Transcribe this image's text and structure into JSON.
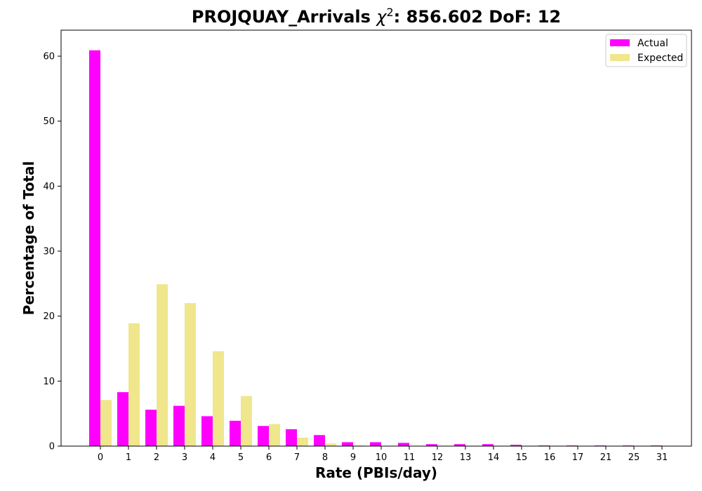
{
  "chart_data": {
    "type": "bar",
    "title": "PROJQUAY_Arrivals χ²: 856.602 DoF: 12",
    "title_parts": {
      "prefix": "PROJQUAY_Arrivals ",
      "chi": "χ",
      "superscript": "2",
      "suffix": ": 856.602 DoF: 12"
    },
    "xlabel": "Rate (PBIs/day)",
    "ylabel": "Percentage of Total",
    "categories": [
      "0",
      "1",
      "2",
      "3",
      "4",
      "5",
      "6",
      "7",
      "8",
      "9",
      "10",
      "11",
      "12",
      "13",
      "14",
      "15",
      "16",
      "17",
      "21",
      "25",
      "31"
    ],
    "series": [
      {
        "name": "Actual",
        "color": "#ff00ff",
        "values": [
          60.9,
          8.3,
          5.6,
          6.2,
          4.6,
          3.9,
          3.1,
          2.6,
          1.7,
          0.6,
          0.6,
          0.5,
          0.3,
          0.3,
          0.3,
          0.2,
          0.1,
          0.1,
          0.1,
          0.1,
          0.1
        ]
      },
      {
        "name": "Expected",
        "color": "#f0e68c",
        "values": [
          7.1,
          18.9,
          24.9,
          22.0,
          14.6,
          7.7,
          3.4,
          1.3,
          0.4,
          0.1,
          0.0,
          0.0,
          0.0,
          0.0,
          0.0,
          0.0,
          0.0,
          0.0,
          0.0,
          0.0,
          0.0
        ]
      }
    ],
    "yticks": [
      0,
      10,
      20,
      30,
      40,
      50,
      60
    ],
    "ylim": [
      0,
      64
    ],
    "grid": false,
    "legend_position": "top-right"
  }
}
